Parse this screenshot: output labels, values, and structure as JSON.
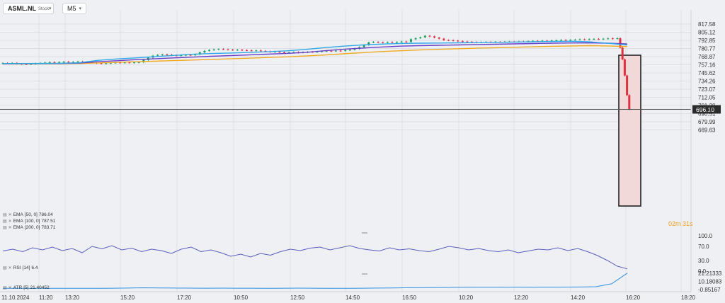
{
  "toolbar": {
    "symbol": "ASML.NL",
    "symbol_type": "Stock",
    "timeframe": "M5"
  },
  "price_axis": {
    "labels": [
      "817.58",
      "805.12",
      "792.85",
      "780.77",
      "768.87",
      "757.16",
      "745.62",
      "734.26",
      "723.07",
      "712.05",
      "701.20",
      "690.51",
      "679.99",
      "669.63"
    ],
    "current_price": "696.10"
  },
  "indicators": {
    "ema50": {
      "name": "EMA",
      "params": "[50, 0]",
      "value": "786.04",
      "color": "#2fa8e8"
    },
    "ema100": {
      "name": "EMA",
      "params": "[100, 0]",
      "value": "787.51",
      "color": "#6a3fc8"
    },
    "ema200": {
      "name": "EMA",
      "params": "[200, 0]",
      "value": "783.71",
      "color": "#f2a922"
    },
    "rsi": {
      "name": "RSI",
      "params": "[14]",
      "value": "6.4",
      "color": "#5a5fc0",
      "axis": [
        "100.0",
        "70.0",
        "30.0",
        "0.0"
      ]
    },
    "atr": {
      "name": "ATR",
      "params": "[5]",
      "value": "21.40452",
      "color": "#2f8fe0",
      "axis": [
        "21.21333",
        "10.18083",
        "-0.85167"
      ]
    }
  },
  "time_axis": [
    "11.10.2024",
    "11:20",
    "13:20",
    "15:20",
    "17:20",
    "10:50",
    "12:50",
    "14:50",
    "16:50",
    "10:20",
    "12:20",
    "14:20",
    "16:20",
    "18:20"
  ],
  "countdown": {
    "minutes": "02",
    "m_label": "m",
    "seconds": "31",
    "s_label": "s"
  },
  "colors": {
    "bull": "#1aa15a",
    "bear": "#e03040",
    "highlight_fill": "#f2d9d9",
    "highlight_border": "#222222"
  },
  "chart_data": {
    "type": "candlestick",
    "ylim": [
      669.63,
      817.58
    ],
    "closes": [
      759.5,
      759.2,
      759.8,
      758.6,
      758.1,
      757.9,
      758.4,
      759.0,
      759.7,
      760.3,
      760.9,
      760.5,
      761.0,
      761.4,
      760.8,
      761.2,
      761.7,
      761.3,
      760.9,
      760.2,
      759.4,
      758.9,
      759.3,
      760.0,
      760.4,
      760.1,
      760.5,
      760.2,
      760.6,
      760.8,
      764.0,
      767.5,
      770.2,
      771.4,
      772.0,
      771.6,
      770.8,
      770.4,
      770.9,
      771.5,
      771.0,
      772.2,
      775.1,
      777.3,
      778.6,
      779.4,
      779.9,
      779.5,
      779.0,
      778.6,
      778.9,
      778.3,
      778.0,
      777.6,
      777.9,
      777.2,
      776.5,
      775.8,
      776.3,
      775.1,
      774.6,
      775.0,
      775.4,
      774.8,
      775.3,
      775.9,
      775.6,
      776.2,
      776.8,
      777.3,
      777.0,
      777.6,
      777.2,
      778.3,
      779.0,
      780.5,
      782.8,
      785.9,
      789.8,
      790.4,
      790.0,
      789.6,
      790.2,
      789.8,
      790.3,
      791.0,
      790.6,
      794.6,
      796.1,
      797.4,
      799.7,
      798.8,
      797.0,
      795.4,
      793.2,
      793.0,
      792.4,
      791.6,
      791.0,
      790.6,
      790.2,
      789.8,
      790.0,
      790.4,
      790.1,
      790.6,
      790.3,
      790.8,
      791.0,
      790.7,
      791.2,
      791.0,
      791.6,
      792.0,
      791.7,
      792.3,
      792.0,
      792.6,
      792.9,
      793.4,
      793.1,
      793.6,
      793.9,
      794.3,
      794.0,
      794.6,
      795.0,
      794.7,
      795.3,
      795.8,
      795.4,
      796.0,
      782.0,
      765.0,
      742.0,
      715.0,
      696.1
    ],
    "ema50": [
      758.9,
      759.0,
      759.1,
      759.3,
      760.0,
      763.5,
      765.5,
      767.0,
      768.8,
      770.6,
      772.3,
      773.4,
      774.1,
      775.0,
      776.0,
      777.4,
      779.4,
      782.0,
      784.2,
      786.0,
      787.3,
      788.2,
      788.6,
      788.9,
      789.2,
      789.5,
      789.9,
      790.3,
      790.8,
      791.2,
      791.5,
      790.6,
      788.4,
      786.04
    ],
    "ema100": [
      758.7,
      758.8,
      758.9,
      759.0,
      759.5,
      761.5,
      763.0,
      764.5,
      765.7,
      767.0,
      768.2,
      769.4,
      770.3,
      771.4,
      772.5,
      773.6,
      775.0,
      777.5,
      779.6,
      781.4,
      783.0,
      784.2,
      785.0,
      785.5,
      786.0,
      786.6,
      787.1,
      787.6,
      788.1,
      788.6,
      789.0,
      789.2,
      788.6,
      787.51
    ],
    "ema200": [
      758.4,
      758.5,
      758.6,
      758.7,
      759.0,
      759.8,
      760.6,
      761.5,
      762.3,
      763.2,
      764.0,
      764.9,
      765.7,
      766.6,
      767.6,
      768.6,
      769.8,
      771.3,
      773.0,
      774.7,
      776.3,
      777.5,
      778.6,
      779.5,
      780.4,
      781.2,
      781.9,
      782.6,
      783.3,
      784.0,
      784.6,
      785.0,
      784.6,
      783.71
    ],
    "rsi": [
      57,
      62,
      55,
      66,
      60,
      68,
      58,
      64,
      52,
      70,
      63,
      72,
      60,
      65,
      55,
      62,
      58,
      50,
      62,
      68,
      55,
      60,
      52,
      42,
      48,
      40,
      50,
      45,
      55,
      62,
      58,
      65,
      68,
      60,
      66,
      72,
      64,
      60,
      57,
      66,
      60,
      63,
      58,
      55,
      62,
      70,
      66,
      60,
      64,
      58,
      55,
      60,
      52,
      57,
      62,
      60,
      66,
      58,
      64,
      55,
      44,
      30,
      14,
      6.4
    ],
    "atr": [
      0.9,
      0.8,
      0.8,
      0.9,
      0.8,
      0.8,
      0.9,
      1.0,
      1.2,
      1.5,
      1.3,
      1.2,
      1.1,
      1.0,
      1.1,
      1.0,
      1.0,
      0.9,
      1.0,
      1.1,
      1.0,
      0.9,
      0.9,
      1.0,
      1.2,
      1.4,
      1.6,
      1.8,
      1.9,
      2.1,
      2.3,
      2.2,
      2.3,
      2.4,
      2.3,
      2.4,
      2.5,
      2.6,
      3.0,
      7.0,
      21.40452
    ]
  }
}
